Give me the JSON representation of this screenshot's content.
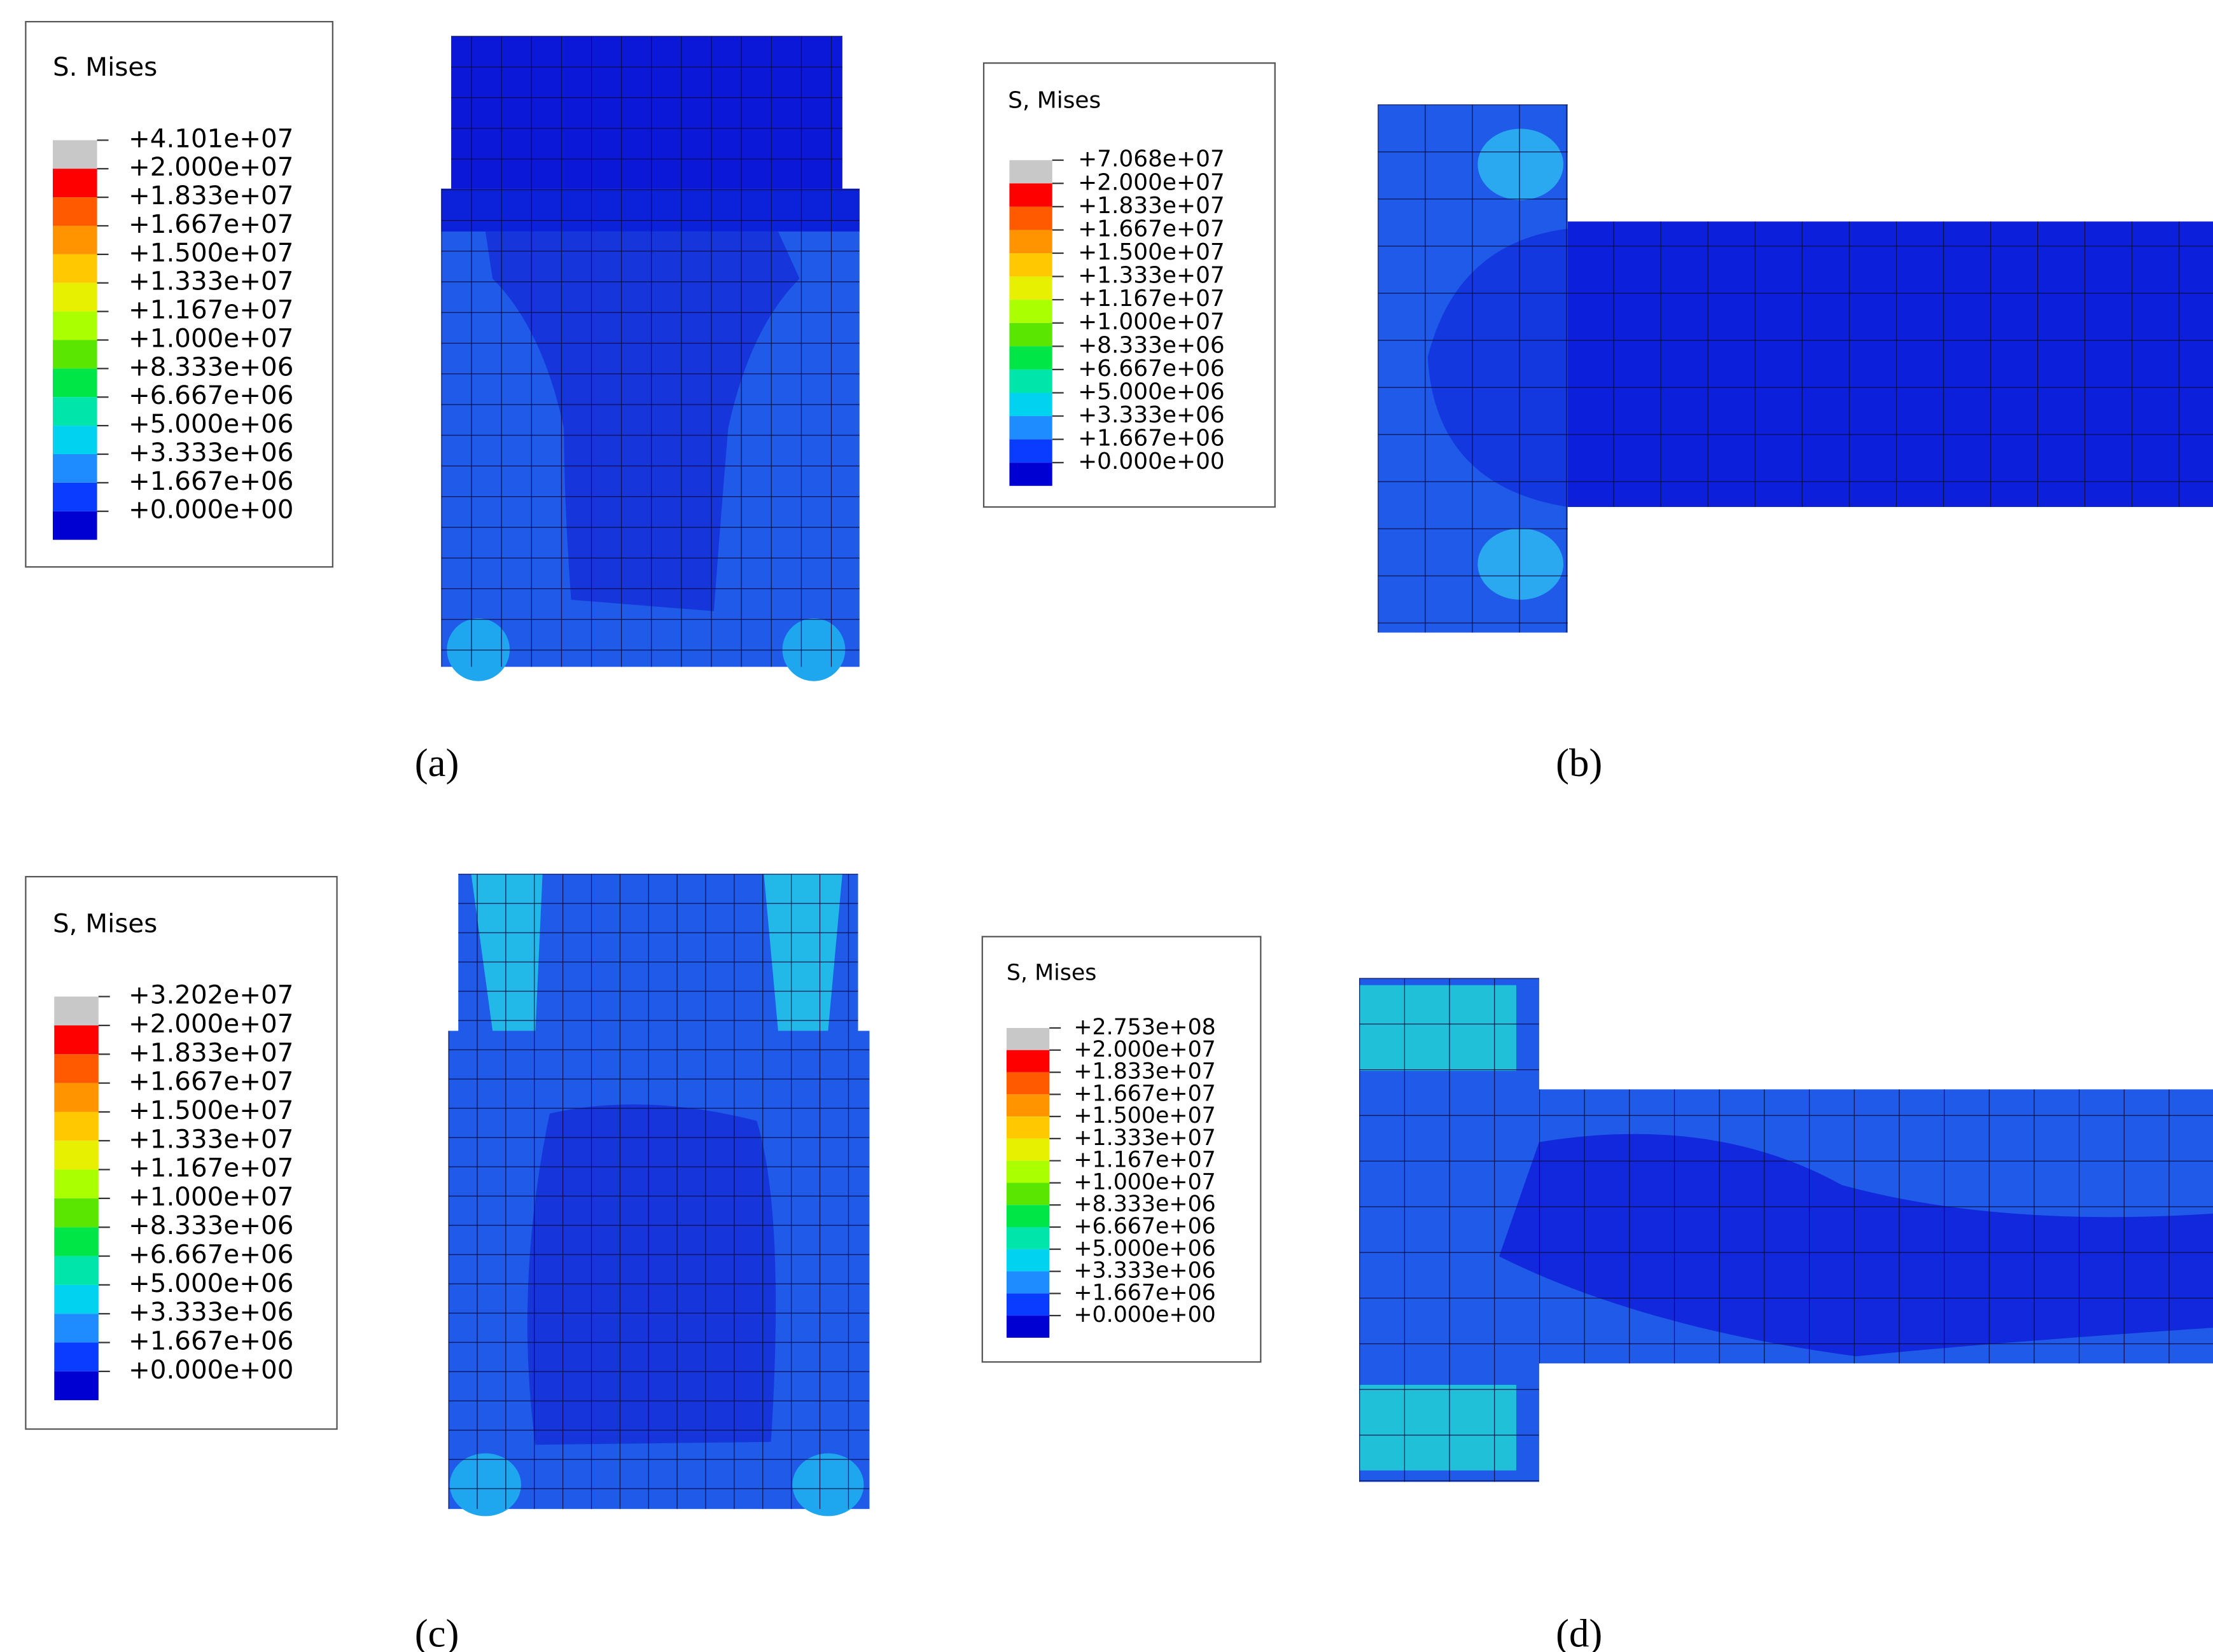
{
  "panels": [
    {
      "legend": {
        "title": "S. Mises",
        "labels": [
          "+4.101e+07",
          "+2.000e+07",
          "+1.833e+07",
          "+1.667e+07",
          "+1.500e+07",
          "+1.333e+07",
          "+1.167e+07",
          "+1.000e+07",
          "+8.333e+06",
          "+6.667e+06",
          "+5.000e+06",
          "+3.333e+06",
          "+1.667e+06",
          "+0.000e+00"
        ]
      },
      "caption": "(a)"
    },
    {
      "legend": {
        "title": "S, Mises",
        "labels": [
          "+7.068e+07",
          "+2.000e+07",
          "+1.833e+07",
          "+1.667e+07",
          "+1.500e+07",
          "+1.333e+07",
          "+1.167e+07",
          "+1.000e+07",
          "+8.333e+06",
          "+6.667e+06",
          "+5.000e+06",
          "+3.333e+06",
          "+1.667e+06",
          "+0.000e+00"
        ]
      },
      "caption": "(b)"
    },
    {
      "legend": {
        "title": "S, Mises",
        "labels": [
          "+3.202e+07",
          "+2.000e+07",
          "+1.833e+07",
          "+1.667e+07",
          "+1.500e+07",
          "+1.333e+07",
          "+1.167e+07",
          "+1.000e+07",
          "+8.333e+06",
          "+6.667e+06",
          "+5.000e+06",
          "+3.333e+06",
          "+1.667e+06",
          "+0.000e+00"
        ]
      },
      "caption": "(c)"
    },
    {
      "legend": {
        "title": "S, Mises",
        "labels": [
          "+2.753e+08",
          "+2.000e+07",
          "+1.833e+07",
          "+1.667e+07",
          "+1.500e+07",
          "+1.333e+07",
          "+1.167e+07",
          "+1.000e+07",
          "+8.333e+06",
          "+6.667e+06",
          "+5.000e+06",
          "+3.333e+06",
          "+1.667e+06",
          "+0.000e+00"
        ]
      },
      "caption": "(d)"
    }
  ]
}
